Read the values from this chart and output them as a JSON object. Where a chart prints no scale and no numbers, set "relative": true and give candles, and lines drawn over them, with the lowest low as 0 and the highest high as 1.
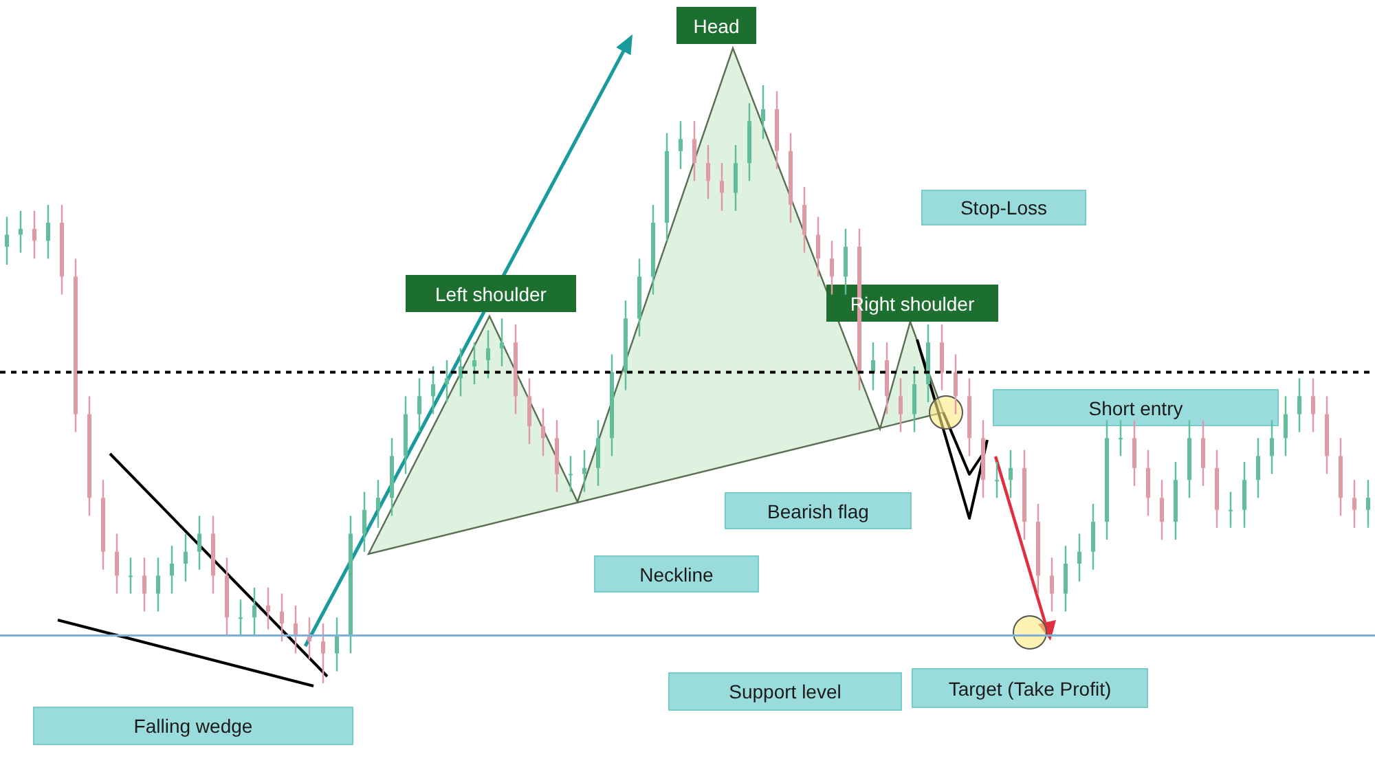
{
  "chart_data": {
    "type": "candlestick",
    "relative": true,
    "categories": [
      null,
      null,
      null,
      null,
      null,
      null,
      null,
      null,
      null,
      null,
      null,
      null,
      null,
      null,
      null,
      null,
      null,
      null,
      null,
      null,
      null,
      null,
      null,
      null,
      null,
      null,
      null,
      null,
      null,
      null,
      null,
      null,
      null,
      null,
      null,
      null,
      null,
      null,
      null,
      null,
      null,
      null,
      null,
      null,
      null,
      null,
      null,
      null,
      null,
      null,
      null,
      null,
      null,
      null,
      null,
      null,
      null,
      null,
      null,
      null,
      null,
      null,
      null,
      null,
      null,
      null,
      null,
      null,
      null,
      null,
      null,
      null,
      null,
      null,
      null,
      null,
      null,
      null,
      null,
      null,
      null,
      null,
      null,
      null,
      null,
      null,
      null,
      null,
      null,
      null,
      null,
      null,
      null,
      null,
      null,
      null,
      null,
      null,
      null,
      null
    ],
    "ohlc": [
      [
        0.73,
        0.78,
        0.7,
        0.75
      ],
      [
        0.75,
        0.79,
        0.72,
        0.76
      ],
      [
        0.76,
        0.79,
        0.71,
        0.74
      ],
      [
        0.74,
        0.8,
        0.71,
        0.77
      ],
      [
        0.77,
        0.8,
        0.65,
        0.68
      ],
      [
        0.68,
        0.71,
        0.42,
        0.45
      ],
      [
        0.45,
        0.48,
        0.28,
        0.31
      ],
      [
        0.31,
        0.34,
        0.19,
        0.22
      ],
      [
        0.22,
        0.25,
        0.15,
        0.18
      ],
      [
        0.18,
        0.21,
        0.15,
        0.18
      ],
      [
        0.18,
        0.21,
        0.12,
        0.15
      ],
      [
        0.15,
        0.21,
        0.12,
        0.18
      ],
      [
        0.18,
        0.23,
        0.15,
        0.2
      ],
      [
        0.2,
        0.25,
        0.17,
        0.22
      ],
      [
        0.22,
        0.28,
        0.19,
        0.25
      ],
      [
        0.25,
        0.28,
        0.15,
        0.18
      ],
      [
        0.18,
        0.21,
        0.08,
        0.11
      ],
      [
        0.11,
        0.14,
        0.08,
        0.11
      ],
      [
        0.11,
        0.16,
        0.08,
        0.13
      ],
      [
        0.13,
        0.16,
        0.09,
        0.12
      ],
      [
        0.12,
        0.15,
        0.07,
        0.1
      ],
      [
        0.1,
        0.13,
        0.05,
        0.08
      ],
      [
        0.08,
        0.11,
        0.04,
        0.07
      ],
      [
        0.07,
        0.1,
        0.0,
        0.05
      ],
      [
        0.05,
        0.11,
        0.02,
        0.08
      ],
      [
        0.08,
        0.28,
        0.05,
        0.25
      ],
      [
        0.25,
        0.32,
        0.22,
        0.29
      ],
      [
        0.29,
        0.34,
        0.26,
        0.31
      ],
      [
        0.31,
        0.41,
        0.28,
        0.38
      ],
      [
        0.38,
        0.48,
        0.35,
        0.45
      ],
      [
        0.45,
        0.51,
        0.42,
        0.48
      ],
      [
        0.48,
        0.53,
        0.45,
        0.5
      ],
      [
        0.5,
        0.54,
        0.47,
        0.51
      ],
      [
        0.51,
        0.56,
        0.48,
        0.53
      ],
      [
        0.53,
        0.57,
        0.5,
        0.54
      ],
      [
        0.54,
        0.59,
        0.51,
        0.56
      ],
      [
        0.56,
        0.61,
        0.53,
        0.57
      ],
      [
        0.57,
        0.6,
        0.45,
        0.48
      ],
      [
        0.48,
        0.51,
        0.4,
        0.43
      ],
      [
        0.43,
        0.46,
        0.38,
        0.41
      ],
      [
        0.41,
        0.44,
        0.32,
        0.35
      ],
      [
        0.35,
        0.38,
        0.32,
        0.35
      ],
      [
        0.35,
        0.39,
        0.32,
        0.36
      ],
      [
        0.36,
        0.44,
        0.33,
        0.41
      ],
      [
        0.41,
        0.55,
        0.38,
        0.52
      ],
      [
        0.52,
        0.64,
        0.49,
        0.61
      ],
      [
        0.61,
        0.71,
        0.58,
        0.68
      ],
      [
        0.68,
        0.8,
        0.65,
        0.77
      ],
      [
        0.77,
        0.92,
        0.74,
        0.89
      ],
      [
        0.89,
        0.94,
        0.86,
        0.91
      ],
      [
        0.91,
        0.94,
        0.84,
        0.87
      ],
      [
        0.87,
        0.9,
        0.81,
        0.84
      ],
      [
        0.84,
        0.87,
        0.79,
        0.82
      ],
      [
        0.82,
        0.9,
        0.79,
        0.87
      ],
      [
        0.87,
        0.97,
        0.84,
        0.94
      ],
      [
        0.94,
        1.0,
        0.91,
        0.96
      ],
      [
        0.96,
        0.99,
        0.86,
        0.89
      ],
      [
        0.89,
        0.92,
        0.77,
        0.8
      ],
      [
        0.8,
        0.83,
        0.72,
        0.75
      ],
      [
        0.75,
        0.78,
        0.68,
        0.71
      ],
      [
        0.71,
        0.74,
        0.65,
        0.68
      ],
      [
        0.68,
        0.76,
        0.65,
        0.73
      ],
      [
        0.73,
        0.76,
        0.49,
        0.52
      ],
      [
        0.52,
        0.57,
        0.49,
        0.54
      ],
      [
        0.54,
        0.57,
        0.45,
        0.48
      ],
      [
        0.48,
        0.51,
        0.42,
        0.45
      ],
      [
        0.45,
        0.53,
        0.42,
        0.5
      ],
      [
        0.5,
        0.6,
        0.47,
        0.57
      ],
      [
        0.57,
        0.6,
        0.49,
        0.52
      ],
      [
        0.52,
        0.55,
        0.45,
        0.48
      ],
      [
        0.48,
        0.51,
        0.38,
        0.41
      ],
      [
        0.41,
        0.44,
        0.31,
        0.34
      ],
      [
        0.34,
        0.37,
        0.31,
        0.34
      ],
      [
        0.34,
        0.39,
        0.31,
        0.36
      ],
      [
        0.36,
        0.39,
        0.24,
        0.27
      ],
      [
        0.27,
        0.3,
        0.15,
        0.18
      ],
      [
        0.18,
        0.21,
        0.12,
        0.15
      ],
      [
        0.15,
        0.23,
        0.12,
        0.2
      ],
      [
        0.2,
        0.25,
        0.17,
        0.22
      ],
      [
        0.22,
        0.3,
        0.19,
        0.27
      ],
      [
        0.27,
        0.44,
        0.24,
        0.41
      ],
      [
        0.41,
        0.44,
        0.38,
        0.41
      ],
      [
        0.41,
        0.44,
        0.33,
        0.36
      ],
      [
        0.36,
        0.39,
        0.28,
        0.31
      ],
      [
        0.31,
        0.34,
        0.24,
        0.27
      ],
      [
        0.27,
        0.37,
        0.24,
        0.34
      ],
      [
        0.34,
        0.44,
        0.31,
        0.41
      ],
      [
        0.41,
        0.44,
        0.33,
        0.36
      ],
      [
        0.36,
        0.39,
        0.26,
        0.29
      ],
      [
        0.29,
        0.32,
        0.26,
        0.29
      ],
      [
        0.29,
        0.37,
        0.26,
        0.34
      ],
      [
        0.34,
        0.41,
        0.31,
        0.38
      ],
      [
        0.38,
        0.44,
        0.35,
        0.41
      ],
      [
        0.41,
        0.48,
        0.38,
        0.45
      ],
      [
        0.45,
        0.51,
        0.42,
        0.48
      ],
      [
        0.48,
        0.51,
        0.42,
        0.45
      ],
      [
        0.45,
        0.48,
        0.35,
        0.38
      ],
      [
        0.38,
        0.41,
        0.28,
        0.31
      ],
      [
        0.31,
        0.34,
        0.26,
        0.29
      ],
      [
        0.29,
        0.34,
        0.26,
        0.31
      ]
    ],
    "ref_lines": [
      {
        "axis": "y",
        "value": 0.52,
        "line_style": "dashed",
        "color": "#000000"
      },
      {
        "axis": "y",
        "value": 0.08,
        "line_style": "solid",
        "color": "#7fb0d8"
      }
    ],
    "annotations": [
      "Head",
      "Left shoulder",
      "Right shoulder",
      "Stop-Loss",
      "Short entry",
      "Bearish flag",
      "Neckline",
      "Support level",
      "Target (Take Profit)",
      "Falling wedge"
    ]
  }
}
